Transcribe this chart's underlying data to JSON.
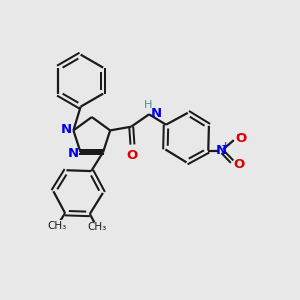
{
  "bg_color": "#e8e8e8",
  "bond_color": "#1a1a1a",
  "N_color": "#0000ee",
  "O_color": "#dd0000",
  "H_color": "#4a9090",
  "line_width": 1.6,
  "font_size": 9.5,
  "figsize": [
    3.0,
    3.0
  ],
  "dpi": 100,
  "xlim": [
    0,
    12
  ],
  "ylim": [
    0,
    12
  ]
}
